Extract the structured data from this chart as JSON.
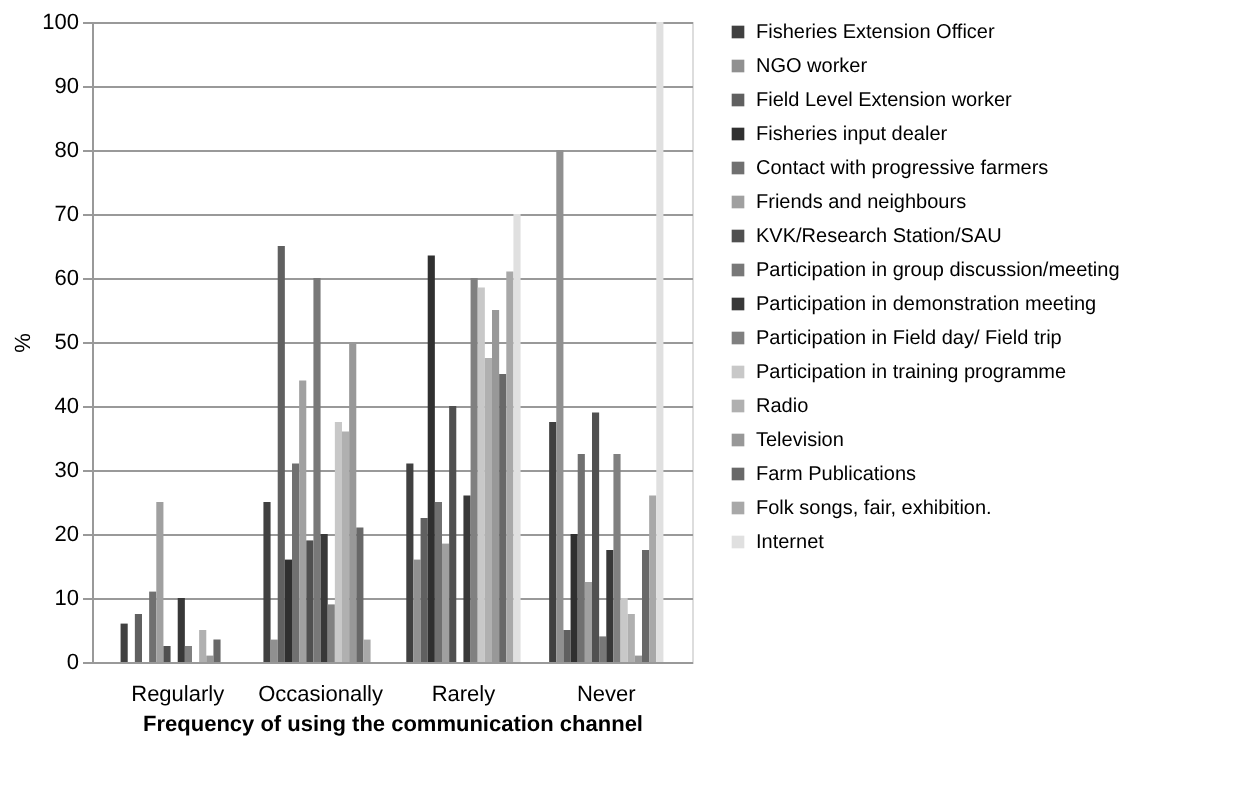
{
  "chart_data": {
    "type": "bar",
    "xlabel": "Frequency of using the communication channel",
    "ylabel": "%",
    "categories": [
      "Regularly",
      "Occasionally",
      "Rarely",
      "Never"
    ],
    "ylim": [
      0,
      100
    ],
    "yticks": [
      0,
      10,
      20,
      30,
      40,
      50,
      60,
      70,
      80,
      90,
      100
    ],
    "grid": "y",
    "legend": "right",
    "series": [
      {
        "name": "Fisheries Extension Officer",
        "color": "#404040",
        "values": [
          6,
          25,
          31,
          37.5
        ]
      },
      {
        "name": "NGO worker",
        "color": "#909090",
        "values": [
          0,
          3.5,
          16,
          80
        ]
      },
      {
        "name": "Field Level Extension worker",
        "color": "#606060",
        "values": [
          7.5,
          65,
          22.5,
          5
        ]
      },
      {
        "name": "Fisheries input dealer",
        "color": "#303030",
        "values": [
          0,
          16,
          63.5,
          20
        ]
      },
      {
        "name": "Contact with progressive farmers",
        "color": "#707070",
        "values": [
          11,
          31,
          25,
          32.5
        ]
      },
      {
        "name": "Friends and neighbours",
        "color": "#a0a0a0",
        "values": [
          25,
          44,
          18.5,
          12.5
        ]
      },
      {
        "name": "KVK/Research Station/SAU",
        "color": "#505050",
        "values": [
          2.5,
          19,
          40,
          39
        ]
      },
      {
        "name": "Participation in group discussion/meeting",
        "color": "#787878",
        "values": [
          0,
          60,
          0,
          4
        ]
      },
      {
        "name": "Participation in demonstration meeting",
        "color": "#383838",
        "values": [
          10,
          20,
          26,
          17.5
        ]
      },
      {
        "name": "Participation in Field day/ Field trip",
        "color": "#808080",
        "values": [
          2.5,
          9,
          60,
          32.5
        ]
      },
      {
        "name": "Participation in training programme",
        "color": "#c8c8c8",
        "values": [
          0,
          37.5,
          58.5,
          10
        ]
      },
      {
        "name": "Radio",
        "color": "#b0b0b0",
        "values": [
          5,
          36,
          47.5,
          7.5
        ]
      },
      {
        "name": "Television",
        "color": "#989898",
        "values": [
          1,
          50,
          55,
          1
        ]
      },
      {
        "name": "Farm Publications",
        "color": "#686868",
        "values": [
          3.5,
          21,
          45,
          17.5
        ]
      },
      {
        "name": "Folk songs, fair, exhibition.",
        "color": "#a8a8a8",
        "values": [
          null,
          3.5,
          61,
          26
        ]
      },
      {
        "name": "Internet",
        "color": "#e0e0e0",
        "values": [
          null,
          null,
          70,
          100
        ]
      }
    ]
  }
}
